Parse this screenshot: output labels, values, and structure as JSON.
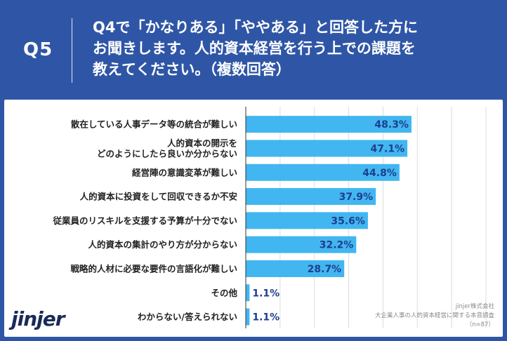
{
  "header": {
    "qnum": "Q5",
    "lines": [
      "Q4で「かなりある」「ややある」と回答した方に",
      "お聞きします。人的資本経営を行う上での課題を",
      "教えてください。（複数回答）"
    ]
  },
  "colors": {
    "bg": "#2f56a6",
    "bar": "#42b6f0",
    "value_in": "#1d3f8f",
    "grid": "#dcdcdc"
  },
  "chart_data": {
    "type": "bar",
    "orientation": "horizontal",
    "categories": [
      [
        "散在している人事データ等の統合が難しい"
      ],
      [
        "人的資本の開示を",
        "どのようにしたら良いか分からない"
      ],
      [
        "経営陣の意識変革が難しい"
      ],
      [
        "人的資本に投資をして回収できるか不安"
      ],
      [
        "従業員のリスキルを支援する予算が十分でない"
      ],
      [
        "人的資本の集計のやり方が分からない"
      ],
      [
        "戦略的人材に必要な要件の言語化が難しい"
      ],
      [
        "その他"
      ],
      [
        "わからない/答えられない"
      ]
    ],
    "values": [
      48.3,
      47.1,
      44.8,
      37.9,
      35.6,
      32.2,
      28.7,
      1.1,
      1.1
    ],
    "labels": [
      "48.3%",
      "47.1%",
      "44.8%",
      "37.9%",
      "35.6%",
      "32.2%",
      "28.7%",
      "1.1%",
      "1.1%"
    ],
    "xlim": [
      0,
      70
    ]
  },
  "logo": "jinjer",
  "credit": [
    "jinjer株式会社",
    "大企業人事の人的資本経営に関する本音調査",
    "（n=87）"
  ]
}
